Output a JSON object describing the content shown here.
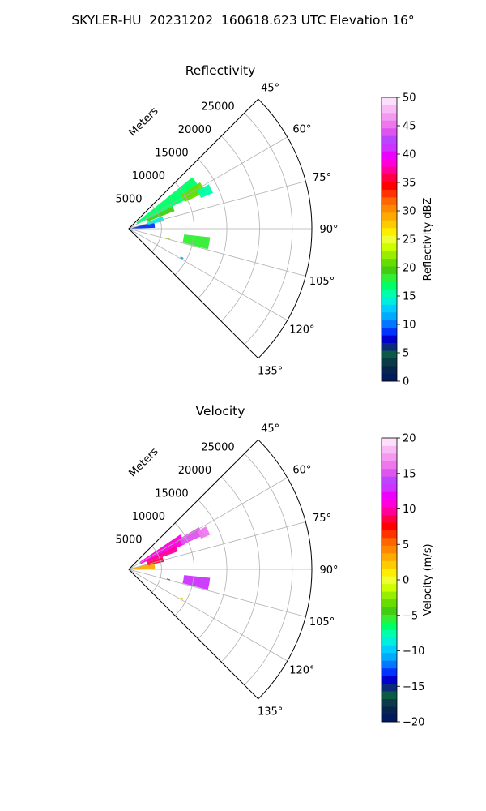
{
  "figure": {
    "title": "SKYLER-HU  20231202  160618.623 UTC Elevation 16°"
  },
  "chart_data": [
    {
      "type": "heatmap",
      "subtype": "polar-sector-ppi",
      "title": "Reflectivity",
      "range_label": "Meters",
      "range_ticks": [
        5000,
        10000,
        15000,
        20000,
        25000
      ],
      "range_tick_labels": [
        "5000",
        "10000",
        "15000",
        "20000",
        "25000"
      ],
      "r_max": 28000,
      "azimuth_range_deg": [
        45,
        135
      ],
      "azimuth_ticks": [
        45,
        60,
        75,
        90,
        105,
        120,
        135
      ],
      "azimuth_tick_labels": [
        "45°",
        "60°",
        "75°",
        "90°",
        "105°",
        "120°",
        "135°"
      ],
      "grid": true,
      "colorbar": {
        "label": "Reflectivity dBZ",
        "min": 0,
        "max": 50,
        "ticks": [
          0,
          5,
          10,
          15,
          20,
          25,
          30,
          35,
          40,
          45,
          50
        ],
        "tick_labels": [
          "0",
          "5",
          "10",
          "15",
          "20",
          "25",
          "30",
          "35",
          "40",
          "45",
          "50"
        ],
        "colors": [
          "#001a5c",
          "#06244e",
          "#0a3a46",
          "#0a5a46",
          "#0d2a7a",
          "#0000cc",
          "#0033ff",
          "#0077ff",
          "#00aaff",
          "#00ccff",
          "#00eedd",
          "#00ffaa",
          "#00ff66",
          "#33ee33",
          "#44cc11",
          "#66dd00",
          "#99ee00",
          "#ccff00",
          "#eeff33",
          "#ffee00",
          "#ffcc00",
          "#ffaa00",
          "#ff8800",
          "#ff6600",
          "#ff3300",
          "#ff0000",
          "#ff0044",
          "#ff0099",
          "#ff00dd",
          "#ee00ff",
          "#cc33ff",
          "#bb44ff",
          "#dd55ee",
          "#ee77ee",
          "#f399f0",
          "#f8bbf6",
          "#fce0fb"
        ]
      },
      "echoes": [
        {
          "az_start": 51.0,
          "az_end": 63.0,
          "r_start": 1500,
          "r_end": 12500,
          "value": 17
        },
        {
          "az_start": 57.0,
          "az_end": 64.5,
          "r_start": 9500,
          "r_end": 13000,
          "value": 21
        },
        {
          "az_start": 63.0,
          "az_end": 69.0,
          "r_start": 3000,
          "r_end": 7500,
          "value": 20
        },
        {
          "az_start": 61.0,
          "az_end": 67.0,
          "r_start": 12000,
          "r_end": 14000,
          "value": 16
        },
        {
          "az_start": 74.0,
          "az_end": 88.0,
          "r_start": 500,
          "r_end": 4000,
          "value": 9
        },
        {
          "az_start": 70.0,
          "az_end": 78.0,
          "r_start": 3000,
          "r_end": 5500,
          "value": 14
        },
        {
          "az_start": 96.0,
          "az_end": 104.5,
          "r_start": 8500,
          "r_end": 12500,
          "value": 18
        },
        {
          "az_start": 103.5,
          "az_end": 105.0,
          "r_start": 6000,
          "r_end": 6500,
          "value": 22
        },
        {
          "az_start": 118.0,
          "az_end": 119.5,
          "r_start": 9000,
          "r_end": 9500,
          "value": 12
        }
      ]
    },
    {
      "type": "heatmap",
      "subtype": "polar-sector-ppi",
      "title": "Velocity",
      "range_label": "Meters",
      "range_ticks": [
        5000,
        10000,
        15000,
        20000,
        25000
      ],
      "range_tick_labels": [
        "5000",
        "10000",
        "15000",
        "20000",
        "25000"
      ],
      "r_max": 28000,
      "azimuth_range_deg": [
        45,
        135
      ],
      "azimuth_ticks": [
        45,
        60,
        75,
        90,
        105,
        120,
        135
      ],
      "azimuth_tick_labels": [
        "45°",
        "60°",
        "75°",
        "90°",
        "105°",
        "120°",
        "135°"
      ],
      "grid": true,
      "colorbar": {
        "label": "Velocity (m/s)",
        "min": -20,
        "max": 20,
        "ticks": [
          -20,
          -15,
          -10,
          -5,
          0,
          5,
          10,
          15,
          20
        ],
        "tick_labels": [
          "−20",
          "−15",
          "−10",
          "−5",
          "0",
          "5",
          "10",
          "15",
          "20"
        ],
        "colors": [
          "#001a5c",
          "#06244e",
          "#0a3a46",
          "#0a5a46",
          "#0d2a7a",
          "#0000cc",
          "#0033ff",
          "#0077ff",
          "#00aaff",
          "#00ccff",
          "#00eedd",
          "#00ffaa",
          "#00ff66",
          "#33ee33",
          "#44cc11",
          "#66dd00",
          "#99ee00",
          "#ccff00",
          "#eeff33",
          "#ffee00",
          "#ffcc00",
          "#ffaa00",
          "#ff8800",
          "#ff6600",
          "#ff3300",
          "#ff0000",
          "#ff0044",
          "#ff0099",
          "#ff00dd",
          "#ee00ff",
          "#cc33ff",
          "#bb44ff",
          "#dd55ee",
          "#ee77ee",
          "#f399f0",
          "#f8bbf6",
          "#fce0fb"
        ]
      },
      "echoes": [
        {
          "az_start": 56.0,
          "az_end": 66.0,
          "r_start": 2000,
          "r_end": 9500,
          "value": 11
        },
        {
          "az_start": 59.0,
          "az_end": 65.5,
          "r_start": 9000,
          "r_end": 12500,
          "value": 15
        },
        {
          "az_start": 64.0,
          "az_end": 70.0,
          "r_start": 3000,
          "r_end": 8000,
          "value": 10
        },
        {
          "az_start": 61.0,
          "az_end": 67.0,
          "r_start": 12000,
          "r_end": 13500,
          "value": 16
        },
        {
          "az_start": 74.0,
          "az_end": 88.0,
          "r_start": 500,
          "r_end": 4000,
          "value": 3
        },
        {
          "az_start": 70.0,
          "az_end": 78.0,
          "r_start": 3000,
          "r_end": 5500,
          "value": 9
        },
        {
          "az_start": 96.0,
          "az_end": 104.5,
          "r_start": 8500,
          "r_end": 12500,
          "value": 13
        },
        {
          "az_start": 103.5,
          "az_end": 105.0,
          "r_start": 6000,
          "r_end": 6500,
          "value": 9
        },
        {
          "az_start": 118.0,
          "az_end": 119.5,
          "r_start": 9000,
          "r_end": 9500,
          "value": 2
        }
      ]
    }
  ]
}
